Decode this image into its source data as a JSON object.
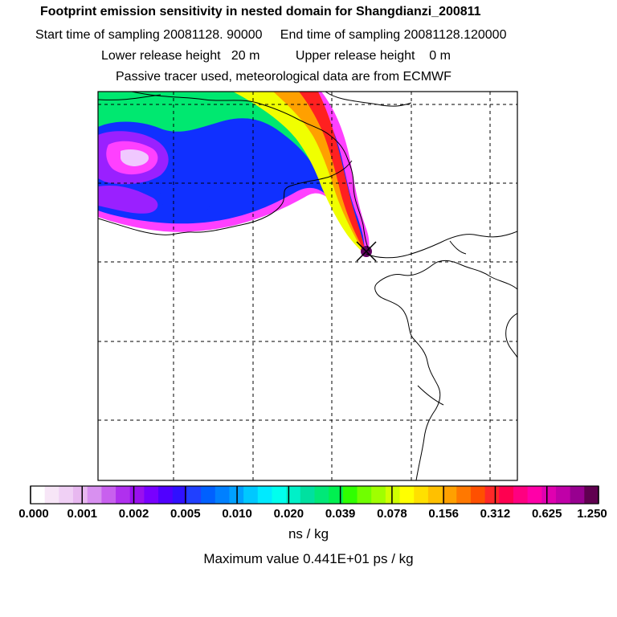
{
  "header": {
    "title": "Footprint emission sensitivity in nested domain for Shangdianzi_200811",
    "line2": "Start time of sampling 20081128. 90000     End time of sampling 20081128.120000",
    "line3": "Lower release height   20 m          Upper release height    0 m",
    "line4": "Passive tracer used, meteorological data are from ECMWF"
  },
  "colorbar": {
    "tick_labels": [
      "0.000",
      "0.001",
      "0.002",
      "0.005",
      "0.010",
      "0.020",
      "0.039",
      "0.078",
      "0.156",
      "0.312",
      "0.625",
      "1.250"
    ],
    "colors": [
      "#ffffff",
      "#f7e6f7",
      "#f0d0f5",
      "#e8b8f0",
      "#d890f0",
      "#c860ee",
      "#b030ee",
      "#9a10ee",
      "#7800ff",
      "#5000ff",
      "#3010ff",
      "#2040ff",
      "#0060ff",
      "#0080ff",
      "#00a0ff",
      "#00c8ff",
      "#00eaff",
      "#00ffee",
      "#00f0c8",
      "#00e0a0",
      "#00e878",
      "#00f050",
      "#30ff00",
      "#70ff00",
      "#a0ff00",
      "#d0ff00",
      "#ffff00",
      "#ffe000",
      "#ffc000",
      "#ffa000",
      "#ff7800",
      "#ff5000",
      "#ff2828",
      "#ff0050",
      "#ff0080",
      "#ff00a8",
      "#e000b0",
      "#c000a8",
      "#980090",
      "#600050"
    ],
    "units": "ns / kg"
  },
  "footer": {
    "maximum": "Maximum value  0.441E+01 ps / kg"
  },
  "map": {
    "receptor": "Shangdianzi",
    "colors": {
      "magenta": "#ff40ff",
      "lavender": "#f0c8ff",
      "purple": "#9a20ff",
      "blue": "#1030ff",
      "cyan": "#00f0ff",
      "green": "#00e870",
      "yellow": "#f0ff00",
      "orange": "#ffa000",
      "red": "#ff2020",
      "receptor": "#600060"
    }
  }
}
